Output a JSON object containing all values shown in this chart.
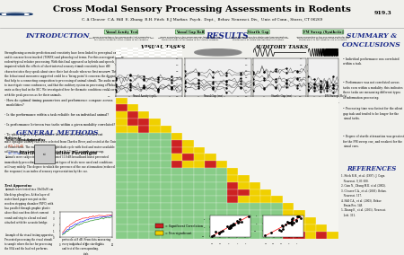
{
  "title": "Cross Modal Sensory Processing Assessments in Rodents",
  "authors": "C. A Cleaver  C.A. Hill  E. Zhang  R.H. Fitch  E.J Markus",
  "affiliation": "Psych.  Dept.,  Behav. Neurosci. Div.,  Univ. of Conn., Storrs, CT 06269",
  "poster_number": "919.3",
  "bg_color": "#f0f0ec",
  "intro_title": "INTRODUCTION",
  "general_methods_title": "GENERAL METHODS",
  "results_title": "RESULTS",
  "visual_tasks_title": "VISUAL TASKS",
  "auditory_tasks_title": "AUDITORY TASKS",
  "summary_title": "SUMMARY &\nCONCLUSIONS",
  "references_title": "REFERENCES",
  "visual_task1": "Visual Acuity Test",
  "visual_task2": "Visual Gap Ball",
  "auditory_task1": "Startle Gap",
  "auditory_task2": "FM Sweep (Synthetic)",
  "summary_bullets": [
    "Individual performance was correlated\nwithin a task.",
    "Performance was not correlated across\ntasks even within a modality; this indicates\nthese tasks are measuring different types\nof information processing.",
    "Processing time was fastest for the silent\ngap task and tended to be longer for the\nvisual tasks.",
    "Degree of startle attenuation was greatest\nfor the FM sweep cue, and weakest for the\nvisual cues."
  ]
}
